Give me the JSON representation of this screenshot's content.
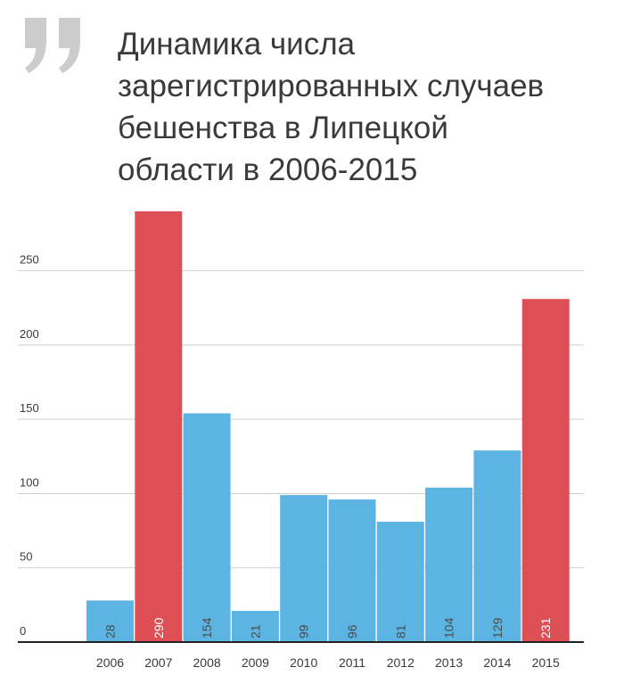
{
  "header": {
    "title_lines": [
      "Динамика числа",
      "зарегистрированных случаев",
      "бешенства в Липецкой",
      "области в 2006-2015"
    ]
  },
  "colors": {
    "normal": "#5cb4e3",
    "highlight": "#dd4f55",
    "grid": "#cfcfcf",
    "axis": "#222222",
    "title": "#3a3a3a",
    "quote": "#cccccc",
    "label_on_normal": "#4a4a4a",
    "label_on_highlight": "#ffffff"
  },
  "chart_data": {
    "type": "bar",
    "title": "Динамика числа зарегистрированных случаев бешенства в Липецкой области в 2006-2015",
    "xlabel": "",
    "ylabel": "",
    "categories": [
      "2006",
      "2007",
      "2008",
      "2009",
      "2010",
      "2011",
      "2012",
      "2013",
      "2014",
      "2015"
    ],
    "values": [
      28,
      290,
      154,
      21,
      99,
      96,
      81,
      104,
      129,
      231
    ],
    "highlighted": [
      false,
      true,
      false,
      false,
      false,
      false,
      false,
      false,
      false,
      true
    ],
    "data_labels": [
      "28",
      "290",
      "154",
      "21",
      "99",
      "96",
      "81",
      "104",
      "129",
      "231"
    ],
    "yticks": [
      0,
      50,
      100,
      150,
      200,
      250
    ],
    "ytick_labels": [
      "0",
      "50",
      "100",
      "150",
      "200",
      "250"
    ],
    "ylim": [
      0,
      290
    ],
    "grid": true,
    "legend": "none"
  }
}
